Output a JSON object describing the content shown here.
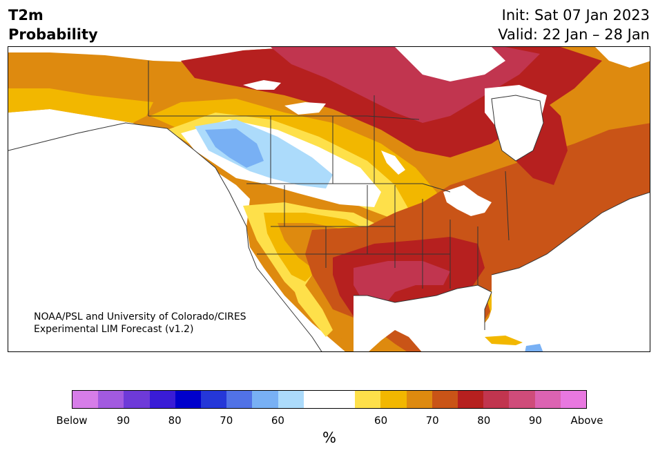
{
  "title": {
    "left_line1": "T2m",
    "left_line2": "Probability",
    "init": "Init: Sat 07 Jan 2023",
    "valid": "Valid: 22 Jan – 28 Jan"
  },
  "credit": {
    "line1": "NOAA/PSL and University of Colorado/CIRES",
    "line2": "Experimental LIM Forecast (v1.2)"
  },
  "colorbar": {
    "colors": [
      "#d67de8",
      "#a25ae0",
      "#6e3ad8",
      "#3a1cd6",
      "#0000cc",
      "#2537d8",
      "#5172e6",
      "#78b0f4",
      "#acdbfb",
      "#ffffff",
      "#ffffff",
      "#fee04a",
      "#f2b700",
      "#de8a0f",
      "#c95417",
      "#b6201f",
      "#c1354f",
      "#cf4c7a",
      "#dc63b2",
      "#e878e0"
    ],
    "ticks": [
      "Below",
      "90",
      "80",
      "70",
      "60",
      "60",
      "70",
      "80",
      "90",
      "Above"
    ],
    "unit": "%"
  },
  "legend_colors": {
    "above_60": "#fee04a",
    "above_65": "#f2b700",
    "above_70": "#de8a0f",
    "above_75": "#c95417",
    "above_80": "#b6201f",
    "above_85": "#c1354f",
    "below_60": "#acdbfb",
    "below_65": "#78b0f4"
  }
}
